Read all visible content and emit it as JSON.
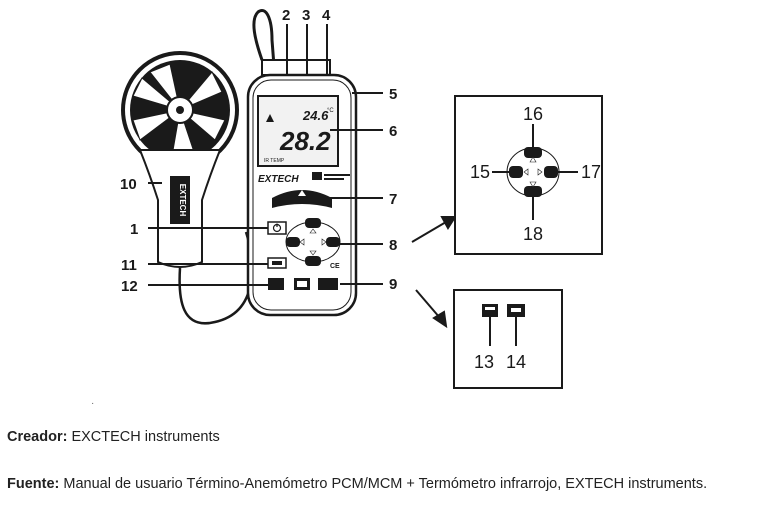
{
  "callouts": {
    "n1": "1",
    "n2": "2",
    "n3": "3",
    "n4": "4",
    "n5": "5",
    "n6": "6",
    "n7": "7",
    "n8": "8",
    "n9": "9",
    "n10": "10",
    "n11": "11",
    "n12": "12",
    "n13": "13",
    "n14": "14",
    "n15": "15",
    "n16": "16",
    "n17": "17",
    "n18": "18"
  },
  "device": {
    "brand": "EXTECH",
    "display_small": "24.6",
    "display_large": "28.2",
    "display_unit_small": "°C",
    "mode_label": "IR TEMP",
    "ce_mark": "CE",
    "handle_brand": "EXTECH"
  },
  "caption": {
    "creator_label": "Creador:",
    "creator_value": "EXCTECH instruments",
    "source_label": "Fuente:",
    "source_value": "Manual de usuario Término-Anemómetro PCM/MCM + Termómetro infrarrojo, EXTECH instruments."
  },
  "colors": {
    "ink": "#1a1a1a",
    "paper": "#ffffff",
    "lcd": "#f2f2f2"
  }
}
